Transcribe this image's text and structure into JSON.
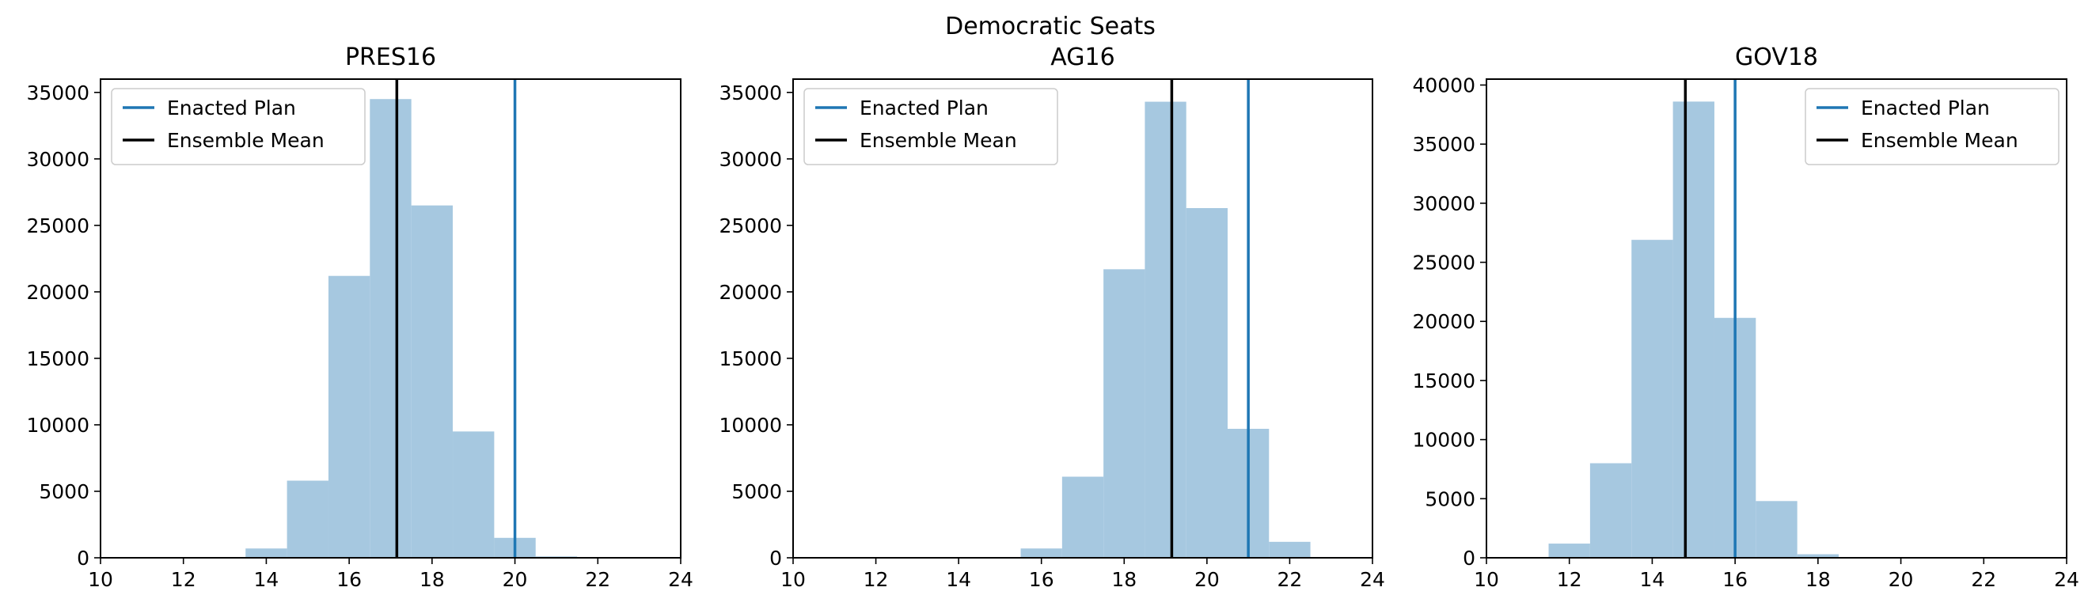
{
  "figure": {
    "suptitle": "Democratic Seats"
  },
  "chart_data": [
    {
      "type": "bar",
      "title": "PRES16",
      "xlabel": "",
      "ylabel": "",
      "xlim": [
        10,
        24
      ],
      "ylim": [
        0,
        36000
      ],
      "xticks": [
        10,
        12,
        14,
        16,
        18,
        20,
        22,
        24
      ],
      "yticks": [
        0,
        5000,
        10000,
        15000,
        20000,
        25000,
        30000,
        35000
      ],
      "bin_width": 1,
      "bins": [
        {
          "x0": 13.5,
          "count": 700
        },
        {
          "x0": 14.5,
          "count": 5800
        },
        {
          "x0": 15.5,
          "count": 21200
        },
        {
          "x0": 16.5,
          "count": 34500
        },
        {
          "x0": 17.5,
          "count": 26500
        },
        {
          "x0": 18.5,
          "count": 9500
        },
        {
          "x0": 19.5,
          "count": 1500
        },
        {
          "x0": 20.5,
          "count": 100
        }
      ],
      "lines": [
        {
          "name": "Enacted Plan",
          "x": 20,
          "color": "#1f77b4"
        },
        {
          "name": "Ensemble Mean",
          "x": 17.15,
          "color": "#000000"
        }
      ],
      "legend_position": "upper-left",
      "bar_color": "#a6c8e0",
      "grid": false
    },
    {
      "type": "bar",
      "title": "AG16",
      "xlabel": "",
      "ylabel": "",
      "xlim": [
        10,
        24
      ],
      "ylim": [
        0,
        36000
      ],
      "xticks": [
        10,
        12,
        14,
        16,
        18,
        20,
        22,
        24
      ],
      "yticks": [
        0,
        5000,
        10000,
        15000,
        20000,
        25000,
        30000,
        35000
      ],
      "bin_width": 1,
      "bins": [
        {
          "x0": 15.5,
          "count": 700
        },
        {
          "x0": 16.5,
          "count": 6100
        },
        {
          "x0": 17.5,
          "count": 21700
        },
        {
          "x0": 18.5,
          "count": 34300
        },
        {
          "x0": 19.5,
          "count": 26300
        },
        {
          "x0": 20.5,
          "count": 9700
        },
        {
          "x0": 21.5,
          "count": 1200
        },
        {
          "x0": 22.5,
          "count": 60
        }
      ],
      "lines": [
        {
          "name": "Enacted Plan",
          "x": 21,
          "color": "#1f77b4"
        },
        {
          "name": "Ensemble Mean",
          "x": 19.15,
          "color": "#000000"
        }
      ],
      "legend_position": "upper-left",
      "bar_color": "#a6c8e0",
      "grid": false
    },
    {
      "type": "bar",
      "title": "GOV18",
      "xlabel": "",
      "ylabel": "",
      "xlim": [
        10,
        24
      ],
      "ylim": [
        0,
        40500
      ],
      "xticks": [
        10,
        12,
        14,
        16,
        18,
        20,
        22,
        24
      ],
      "yticks": [
        0,
        5000,
        10000,
        15000,
        20000,
        25000,
        30000,
        35000,
        40000
      ],
      "bin_width": 1,
      "bins": [
        {
          "x0": 11.5,
          "count": 1200
        },
        {
          "x0": 12.5,
          "count": 8000
        },
        {
          "x0": 13.5,
          "count": 26900
        },
        {
          "x0": 14.5,
          "count": 38600
        },
        {
          "x0": 15.5,
          "count": 20300
        },
        {
          "x0": 16.5,
          "count": 4800
        },
        {
          "x0": 17.5,
          "count": 300
        }
      ],
      "lines": [
        {
          "name": "Enacted Plan",
          "x": 16,
          "color": "#1f77b4"
        },
        {
          "name": "Ensemble Mean",
          "x": 14.8,
          "color": "#000000"
        }
      ],
      "legend_position": "upper-right",
      "bar_color": "#a6c8e0",
      "grid": false
    }
  ]
}
